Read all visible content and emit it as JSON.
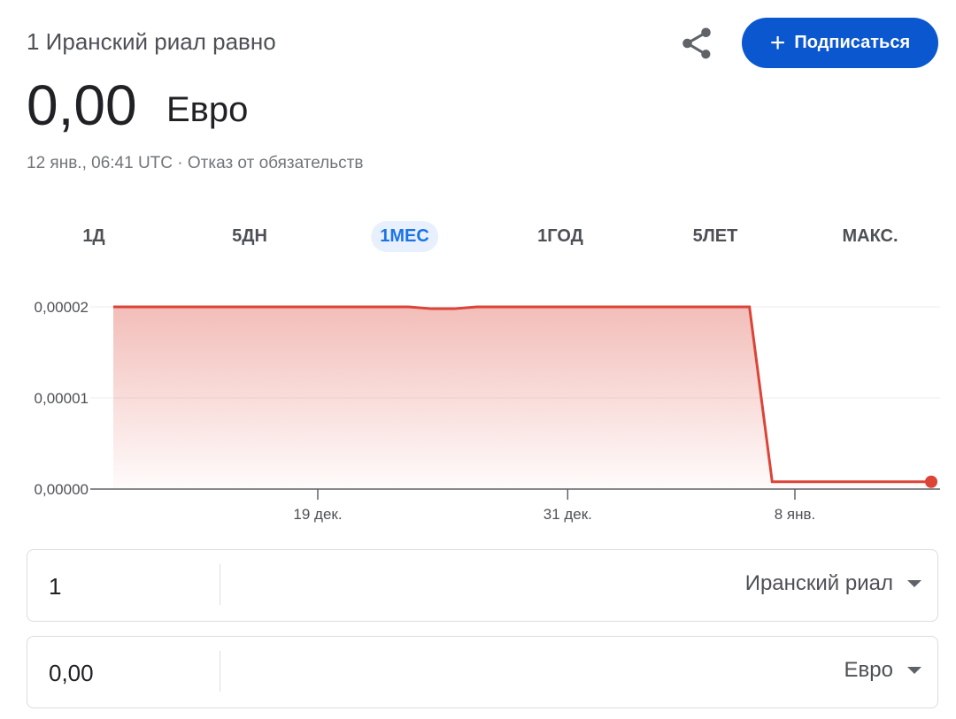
{
  "header": {
    "subtitle": "1 Иранский риал равно",
    "amount": "0,00",
    "currency": "Евро",
    "timestamp": "12 янв., 06:41 UTC · Отказ от обязательств",
    "subscribe": "Подписаться"
  },
  "tabs": [
    "1Д",
    "5ДН",
    "1МЕС",
    "1ГОД",
    "5ЛЕТ",
    "МАКС."
  ],
  "selected_tab": "1МЕС",
  "chart_data": {
    "type": "line",
    "color": "#db4437",
    "grid": true,
    "categories": [
      null,
      null,
      null,
      null,
      null,
      null,
      null,
      null,
      null,
      "19 дек.",
      null,
      null,
      null,
      null,
      null,
      null,
      null,
      null,
      null,
      null,
      "31 дек.",
      null,
      null,
      null,
      null,
      null,
      null,
      null,
      null,
      null,
      "8 янв.",
      null,
      null,
      null,
      null,
      null,
      null
    ],
    "values": [
      2e-05,
      2e-05,
      2e-05,
      2e-05,
      2e-05,
      2e-05,
      2e-05,
      2e-05,
      2e-05,
      2e-05,
      2e-05,
      2e-05,
      2e-05,
      2e-05,
      1.98e-05,
      1.98e-05,
      2e-05,
      2e-05,
      2e-05,
      2e-05,
      2e-05,
      2e-05,
      2e-05,
      2e-05,
      2e-05,
      2e-05,
      2e-05,
      2e-05,
      2e-05,
      8e-07,
      8e-07,
      8e-07,
      8e-07,
      8e-07,
      8e-07,
      8e-07,
      8e-07
    ],
    "ylim": [
      0,
      2e-05
    ],
    "yticks": [
      {
        "value": 0,
        "label": "0,00000"
      },
      {
        "value": 1e-05,
        "label": "0,00001"
      },
      {
        "value": 2e-05,
        "label": "0,00002"
      }
    ]
  },
  "converter": [
    {
      "amount": "1",
      "currency": "Иранский риал"
    },
    {
      "amount": "0,00",
      "currency": "Евро"
    }
  ]
}
